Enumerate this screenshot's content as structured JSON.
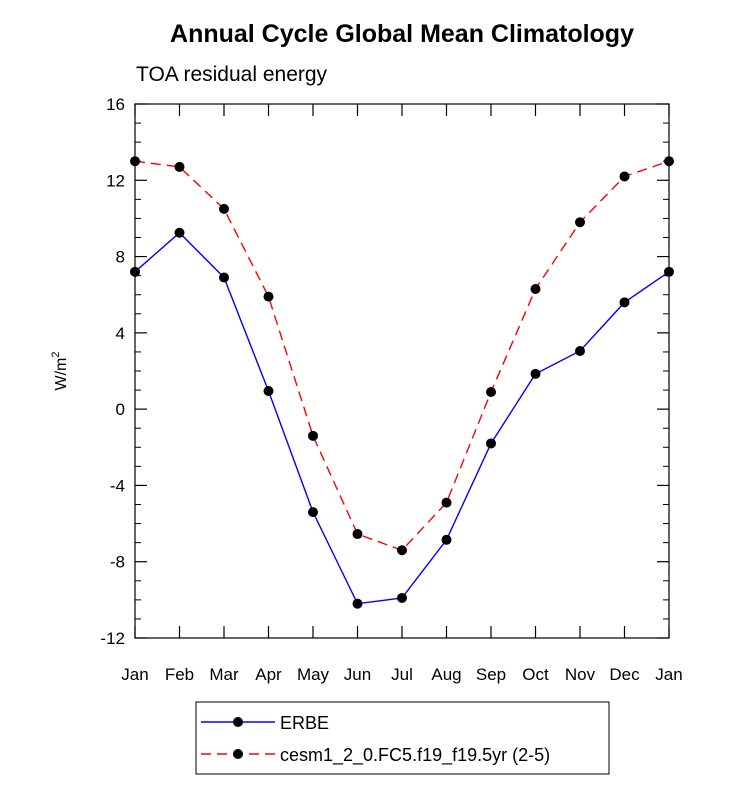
{
  "chart_data": {
    "type": "line",
    "title": "Annual Cycle Global Mean Climatology",
    "subtitle": "TOA residual energy",
    "ylabel_base": "W/m",
    "ylabel_sup": "2",
    "xlabel": "",
    "categories": [
      "Jan",
      "Feb",
      "Mar",
      "Apr",
      "May",
      "Jun",
      "Jul",
      "Aug",
      "Sep",
      "Oct",
      "Nov",
      "Dec",
      "Jan"
    ],
    "ylim": [
      -12,
      16
    ],
    "yticks": [
      -12,
      -8,
      -4,
      0,
      4,
      8,
      12,
      16
    ],
    "ytick_labels": [
      "-12",
      "-8",
      "-4",
      "0",
      "4",
      "8",
      "12",
      "16"
    ],
    "y_minor_step": 1,
    "series": [
      {
        "name": "ERBE",
        "color": "#0000ff",
        "dash": "solid",
        "marker": "circle",
        "values": [
          7.2,
          9.25,
          6.9,
          0.95,
          -5.4,
          -10.2,
          -9.9,
          -6.85,
          -1.8,
          1.85,
          3.05,
          5.6,
          7.2
        ]
      },
      {
        "name": "cesm1_2_0.FC5.f19_f19.5yr (2-5)",
        "color": "#ff0000",
        "dash": "dashed",
        "marker": "circle",
        "values": [
          13.0,
          12.7,
          10.5,
          5.9,
          -1.4,
          -6.55,
          -7.4,
          -4.9,
          0.9,
          6.3,
          9.8,
          12.2,
          13.0
        ]
      }
    ],
    "legend_position": "bottom"
  }
}
